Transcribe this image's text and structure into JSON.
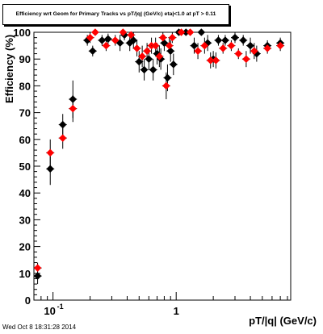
{
  "title": "Efficiency wrt Geom for Primary Tracks vs pT/|q| (GeV/c) eta|<1.0 at pT > 0.11",
  "datestamp": "Wed Oct  8 18:31:28 2014",
  "colors": {
    "black_series": "#000000",
    "red_series": "#ff0000"
  },
  "chart_data": {
    "type": "scatter",
    "title": "Efficiency wrt Geom for Primary Tracks vs pT/|q| (GeV/c) eta|<1.0 at pT > 0.11",
    "xlabel": "pT/|q| (GeV/c)",
    "ylabel": "Efficiency (%)",
    "xscale": "log",
    "xlim": [
      0.07,
      8.5
    ],
    "ylim": [
      0,
      100
    ],
    "x_tick_labels": [
      "10^{-1}",
      "1"
    ],
    "y_tick_labels": [
      "0",
      "10",
      "20",
      "30",
      "40",
      "50",
      "60",
      "70",
      "80",
      "90",
      "100"
    ],
    "grid": false,
    "series": [
      {
        "color": "black",
        "points": [
          {
            "x": 0.075,
            "y": 9,
            "err": 3
          },
          {
            "x": 0.095,
            "y": 49,
            "err": 6
          },
          {
            "x": 0.12,
            "y": 65.5,
            "err": 4
          },
          {
            "x": 0.145,
            "y": 75,
            "err": 7
          },
          {
            "x": 0.19,
            "y": 97,
            "err": 2
          },
          {
            "x": 0.21,
            "y": 93,
            "err": 2
          },
          {
            "x": 0.25,
            "y": 97,
            "err": 2
          },
          {
            "x": 0.28,
            "y": 97.5,
            "err": 2
          },
          {
            "x": 0.35,
            "y": 96,
            "err": 3
          },
          {
            "x": 0.38,
            "y": 99,
            "err": 2
          },
          {
            "x": 0.42,
            "y": 96,
            "err": 3
          },
          {
            "x": 0.45,
            "y": 97,
            "err": 3
          },
          {
            "x": 0.5,
            "y": 89,
            "err": 4
          },
          {
            "x": 0.55,
            "y": 86,
            "err": 4
          },
          {
            "x": 0.6,
            "y": 90,
            "err": 4
          },
          {
            "x": 0.65,
            "y": 86,
            "err": 4
          },
          {
            "x": 0.7,
            "y": 92,
            "err": 4
          },
          {
            "x": 0.75,
            "y": 90,
            "err": 4
          },
          {
            "x": 0.8,
            "y": 96,
            "err": 3
          },
          {
            "x": 0.85,
            "y": 83,
            "err": 5
          },
          {
            "x": 0.9,
            "y": 93,
            "err": 4
          },
          {
            "x": 0.95,
            "y": 88,
            "err": 4
          },
          {
            "x": 1.05,
            "y": 100,
            "err": 1
          },
          {
            "x": 1.2,
            "y": 100,
            "err": 1
          },
          {
            "x": 1.4,
            "y": 95,
            "err": 3
          },
          {
            "x": 1.6,
            "y": 100,
            "err": 1
          },
          {
            "x": 1.8,
            "y": 96,
            "err": 3
          },
          {
            "x": 2.0,
            "y": 90,
            "err": 3
          },
          {
            "x": 2.2,
            "y": 97,
            "err": 2
          },
          {
            "x": 2.5,
            "y": 97,
            "err": 2
          },
          {
            "x": 3.0,
            "y": 98,
            "err": 2
          },
          {
            "x": 3.5,
            "y": 97,
            "err": 2
          },
          {
            "x": 4.0,
            "y": 95,
            "err": 3
          },
          {
            "x": 4.5,
            "y": 92,
            "err": 3
          },
          {
            "x": 5.5,
            "y": 95,
            "err": 2
          },
          {
            "x": 7.0,
            "y": 96,
            "err": 2
          }
        ]
      },
      {
        "color": "red",
        "points": [
          {
            "x": 0.075,
            "y": 12,
            "err": 2
          },
          {
            "x": 0.095,
            "y": 55,
            "err": 5
          },
          {
            "x": 0.12,
            "y": 60.5,
            "err": 4
          },
          {
            "x": 0.145,
            "y": 71.5,
            "err": 5
          },
          {
            "x": 0.2,
            "y": 98,
            "err": 2
          },
          {
            "x": 0.22,
            "y": 100,
            "err": 1
          },
          {
            "x": 0.27,
            "y": 95,
            "err": 2
          },
          {
            "x": 0.32,
            "y": 97,
            "err": 2
          },
          {
            "x": 0.37,
            "y": 100,
            "err": 1
          },
          {
            "x": 0.43,
            "y": 99,
            "err": 2
          },
          {
            "x": 0.48,
            "y": 94,
            "err": 3
          },
          {
            "x": 0.53,
            "y": 91,
            "err": 4
          },
          {
            "x": 0.58,
            "y": 93,
            "err": 3
          },
          {
            "x": 0.63,
            "y": 95,
            "err": 3
          },
          {
            "x": 0.68,
            "y": 95,
            "err": 3
          },
          {
            "x": 0.73,
            "y": 91,
            "err": 4
          },
          {
            "x": 0.78,
            "y": 98,
            "err": 2
          },
          {
            "x": 0.83,
            "y": 80,
            "err": 5
          },
          {
            "x": 0.88,
            "y": 95,
            "err": 3
          },
          {
            "x": 0.93,
            "y": 98,
            "err": 2
          },
          {
            "x": 1.1,
            "y": 100,
            "err": 1
          },
          {
            "x": 1.3,
            "y": 100,
            "err": 1
          },
          {
            "x": 1.5,
            "y": 93,
            "err": 3
          },
          {
            "x": 1.7,
            "y": 95,
            "err": 3
          },
          {
            "x": 1.9,
            "y": 89.5,
            "err": 3
          },
          {
            "x": 2.1,
            "y": 89.5,
            "err": 3
          },
          {
            "x": 2.4,
            "y": 94,
            "err": 2
          },
          {
            "x": 2.8,
            "y": 95,
            "err": 2
          },
          {
            "x": 3.2,
            "y": 92,
            "err": 2
          },
          {
            "x": 3.7,
            "y": 90,
            "err": 3
          },
          {
            "x": 4.3,
            "y": 93,
            "err": 3
          },
          {
            "x": 5.5,
            "y": 94,
            "err": 2
          },
          {
            "x": 7.0,
            "y": 95,
            "err": 2
          }
        ]
      }
    ]
  }
}
